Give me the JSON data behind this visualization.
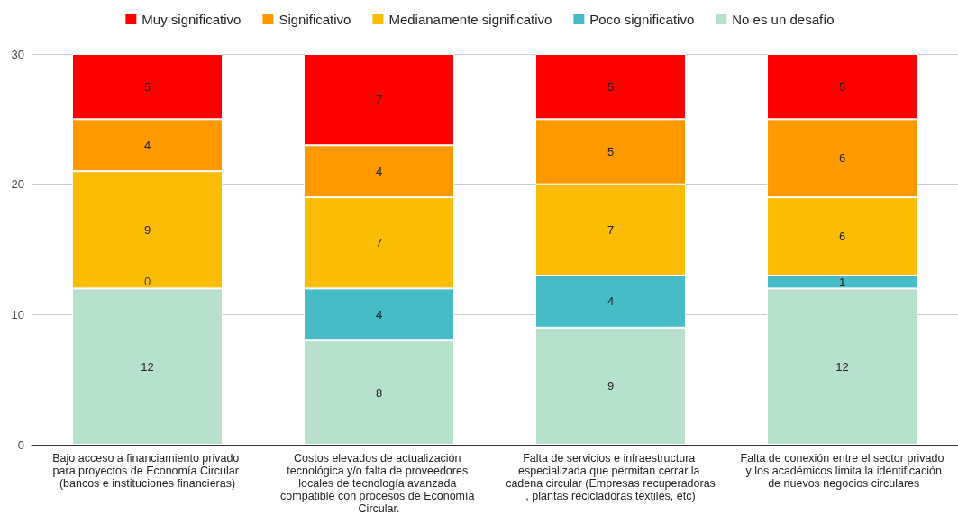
{
  "chart_data": {
    "type": "bar",
    "stacked": true,
    "categories": [
      "Bajo acceso a financiamiento privado para proyectos de Economía Circular (bancos e instituciones financieras)",
      "Costos elevados de actualización tecnológica y/o falta de proveedores locales de tecnología avanzada compatible con procesos de Economía Circular.",
      "Falta de servicios e infraestructura especializada que permitan cerrar la cadena circular (Empresas recuperadoras, plantas recicladoras textiles, etc)",
      "Falta de conexión entre el sector privado y los académicos limita la identificación de nuevos negocios circulares"
    ],
    "series": [
      {
        "name": "No es un desafío",
        "color": "#b7e1cd",
        "values": [
          12,
          8,
          9,
          12
        ],
        "value_labels": [
          "12",
          "8",
          "9",
          "12"
        ]
      },
      {
        "name": "Poco significativo",
        "color": "#46bdc6",
        "values": [
          0,
          4,
          4,
          1
        ],
        "value_labels": [
          null,
          "4",
          "4",
          "1"
        ]
      },
      {
        "name": "Medianamente significativo",
        "color": "#fbbc04",
        "values": [
          9,
          7,
          7,
          6
        ],
        "value_labels": [
          "9",
          "7",
          "7",
          "6"
        ]
      },
      {
        "name": "Significativo",
        "color": "#ff9900",
        "values": [
          4,
          4,
          5,
          6
        ],
        "value_labels": [
          "4",
          "4",
          "5",
          "6"
        ]
      },
      {
        "name": "Muy significativo",
        "color": "#ff0000",
        "values": [
          5,
          7,
          5,
          5
        ],
        "value_labels": [
          "5",
          "7",
          "5",
          "5"
        ]
      }
    ],
    "annotations": [
      {
        "text": "0",
        "x": "Bajo acceso a financiamiento privado para proyectos de Economía Circular (bancos e instituciones financieras)",
        "y": 12
      }
    ],
    "ylim": [
      0,
      30
    ],
    "yticks": [
      0,
      10,
      20,
      30
    ],
    "grid": "y",
    "legend": "top"
  }
}
